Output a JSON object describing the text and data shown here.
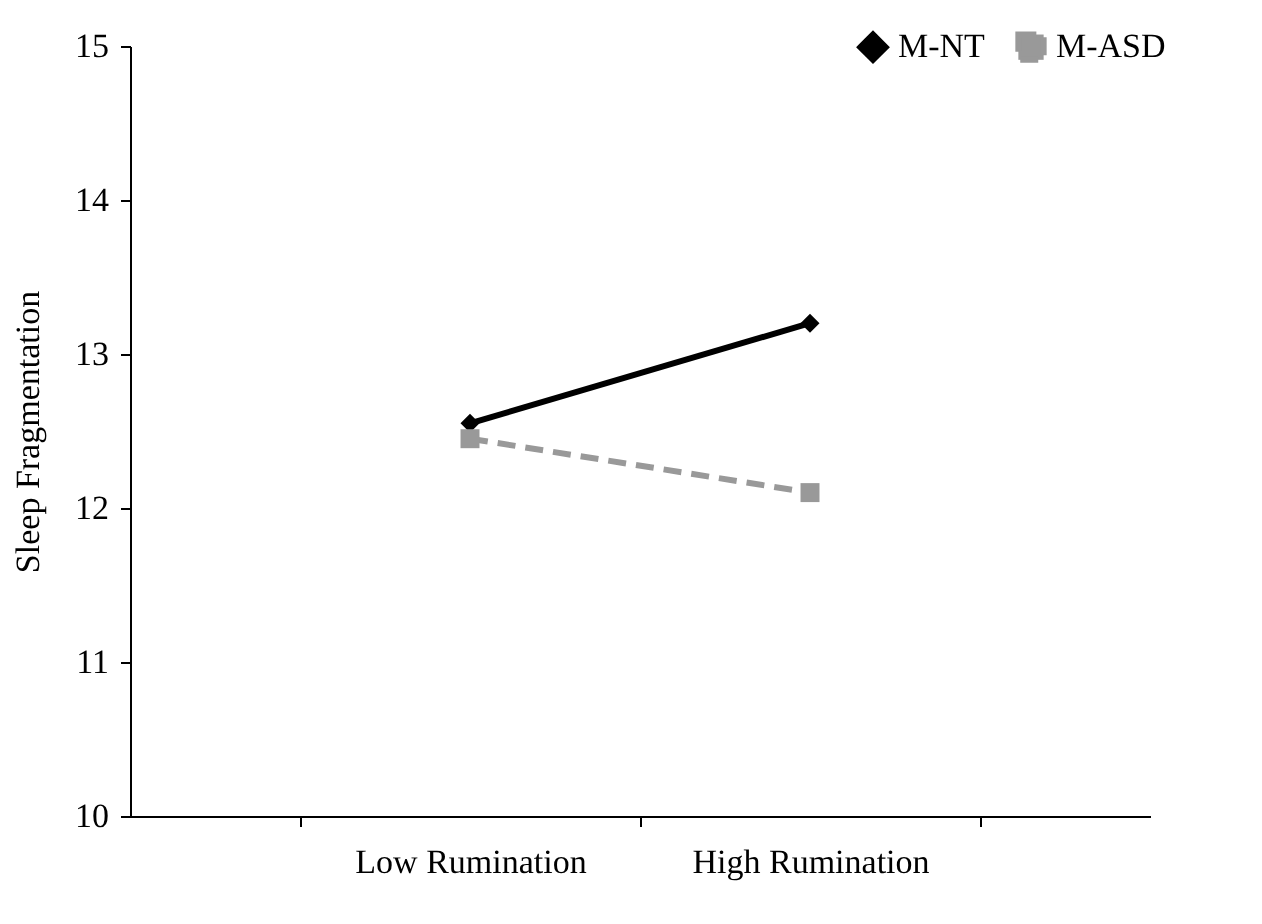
{
  "chart_data": {
    "type": "line",
    "ylabel": "Sleep Fragmentation",
    "categories": [
      "Low Rumination",
      "High Rumination"
    ],
    "ylim": [
      10,
      15
    ],
    "yticks": [
      10,
      11,
      12,
      13,
      14,
      15
    ],
    "grid": false,
    "legend": "top right",
    "series": [
      {
        "name": "M-NT",
        "color": "#000000",
        "marker": "diamond",
        "line_style": "solid",
        "values": [
          12.55,
          13.2
        ]
      },
      {
        "name": "M-ASD",
        "color": "#999999",
        "marker": "square",
        "line_style": "dashed",
        "values": [
          12.45,
          12.1
        ]
      }
    ]
  }
}
